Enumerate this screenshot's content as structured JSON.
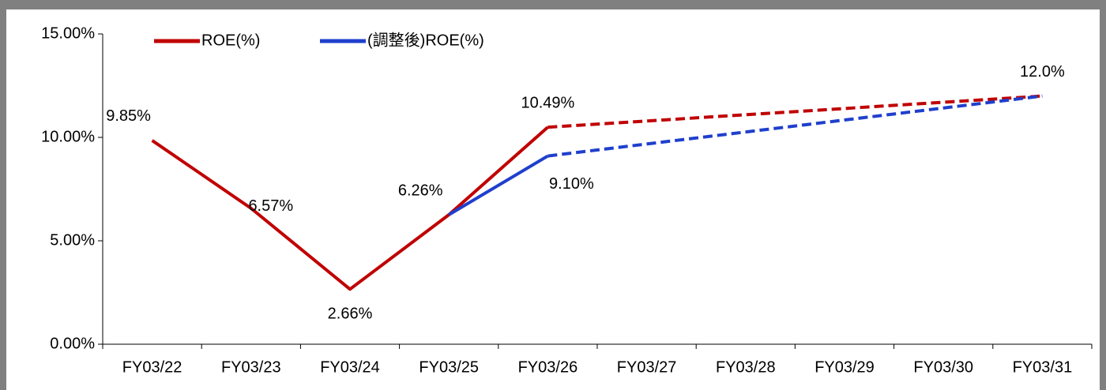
{
  "chart_data": {
    "type": "line",
    "categories": [
      "FY03/22",
      "FY03/23",
      "FY03/24",
      "FY03/25",
      "FY03/26",
      "FY03/27",
      "FY03/28",
      "FY03/29",
      "FY03/30",
      "FY03/31"
    ],
    "series": [
      {
        "name": "ROE(%)",
        "color": "#c00000",
        "values": [
          9.85,
          6.57,
          2.66,
          6.26,
          10.49,
          null,
          null,
          null,
          null,
          12.0
        ],
        "value_labels": [
          "9.85%",
          "6.57%",
          "2.66%",
          "6.26%",
          "10.49%",
          null,
          null,
          null,
          null,
          "12.0%"
        ]
      },
      {
        "name": "(調整後)ROE(%)",
        "color": "#1f3fcc",
        "values": [
          null,
          null,
          null,
          6.26,
          9.1,
          null,
          null,
          null,
          null,
          12.0
        ],
        "value_labels": [
          null,
          null,
          null,
          null,
          "9.10%",
          null,
          null,
          null,
          null,
          null
        ]
      }
    ],
    "dash_from": 4,
    "ylim": [
      0,
      15
    ],
    "yticks": [
      {
        "value": 0,
        "label": "0.00%"
      },
      {
        "value": 5,
        "label": "5.00%"
      },
      {
        "value": 10,
        "label": "10.00%"
      },
      {
        "value": 15,
        "label": "15.00%"
      }
    ],
    "legend": "top-left"
  }
}
